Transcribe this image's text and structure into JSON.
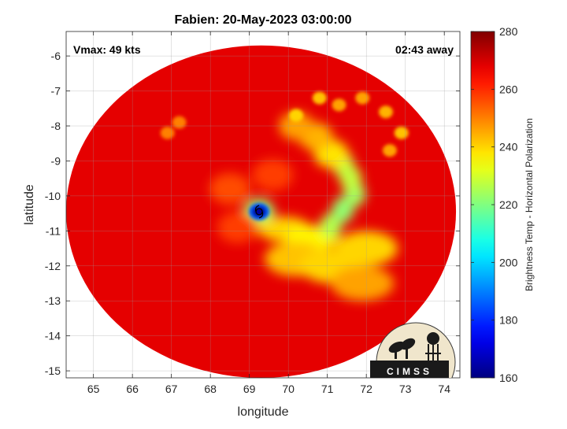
{
  "chart_data": {
    "type": "heatmap",
    "title": "Fabien: 20-May-2023 03:00:00",
    "xlabel": "longitude",
    "ylabel": "latitude",
    "xlim": [
      64.3,
      74.4
    ],
    "ylim": [
      -15.2,
      -5.3
    ],
    "x_ticks": [
      65,
      66,
      67,
      68,
      69,
      70,
      71,
      72,
      73,
      74
    ],
    "y_ticks": [
      -6,
      -7,
      -8,
      -9,
      -10,
      -11,
      -12,
      -13,
      -14,
      -15
    ],
    "grid": true,
    "annotations": {
      "vmax": "Vmax: 49 kts",
      "time_offset": "02:43 away"
    },
    "storm_center": {
      "lon": 69.25,
      "lat": -10.45
    },
    "colorbar": {
      "label": "Brightness Temp - Horizontal Polarization",
      "range": [
        160,
        280
      ],
      "ticks": [
        160,
        180,
        200,
        220,
        240,
        260,
        280
      ],
      "colormap": "jet"
    },
    "swath": {
      "center_lon": 69.3,
      "center_lat": -10.45,
      "radius_lon": 5.0,
      "radius_lat": 4.75
    },
    "background_value": 268,
    "features": [
      {
        "feature": "eye",
        "lon": 69.25,
        "lat": -10.45,
        "value": 163
      },
      {
        "feature": "eyewall-band",
        "lon": 69.9,
        "lat": -10.95,
        "value": 240
      },
      {
        "feature": "eyewall-band",
        "lon": 70.6,
        "lat": -11.2,
        "value": 236
      },
      {
        "feature": "inner-band",
        "lon": 71.1,
        "lat": -10.85,
        "value": 226
      },
      {
        "feature": "inner-band",
        "lon": 71.4,
        "lat": -10.4,
        "value": 222
      },
      {
        "feature": "inner-band",
        "lon": 71.7,
        "lat": -9.95,
        "value": 224
      },
      {
        "feature": "inner-band",
        "lon": 71.6,
        "lat": -9.5,
        "value": 228
      },
      {
        "feature": "inner-band",
        "lon": 71.4,
        "lat": -9.1,
        "value": 228
      },
      {
        "feature": "outer-band",
        "lon": 71.1,
        "lat": -8.8,
        "value": 238
      },
      {
        "feature": "outer-band",
        "lon": 70.7,
        "lat": -8.3,
        "value": 244
      },
      {
        "feature": "outer-band",
        "lon": 70.2,
        "lat": -8.0,
        "value": 246
      },
      {
        "feature": "southern-band",
        "lon": 70.2,
        "lat": -11.8,
        "value": 242
      },
      {
        "feature": "southern-band",
        "lon": 71.1,
        "lat": -12.0,
        "value": 240
      },
      {
        "feature": "southern-band",
        "lon": 72.0,
        "lat": -11.5,
        "value": 240
      },
      {
        "feature": "southern-band",
        "lon": 71.9,
        "lat": -12.5,
        "value": 246
      },
      {
        "feature": "convective-cell",
        "lon": 70.2,
        "lat": -7.7,
        "value": 240
      },
      {
        "feature": "convective-cell",
        "lon": 70.8,
        "lat": -7.2,
        "value": 242
      },
      {
        "feature": "convective-cell",
        "lon": 71.3,
        "lat": -7.4,
        "value": 246
      },
      {
        "feature": "convective-cell",
        "lon": 71.9,
        "lat": -7.2,
        "value": 246
      },
      {
        "feature": "convective-cell",
        "lon": 72.5,
        "lat": -7.6,
        "value": 244
      },
      {
        "feature": "convective-cell",
        "lon": 72.9,
        "lat": -8.2,
        "value": 242
      },
      {
        "feature": "convective-cell",
        "lon": 72.6,
        "lat": -8.7,
        "value": 246
      },
      {
        "feature": "convective-cell",
        "lon": 67.2,
        "lat": -7.9,
        "value": 250
      },
      {
        "feature": "convective-cell",
        "lon": 66.9,
        "lat": -8.2,
        "value": 250
      },
      {
        "feature": "rain-swirl",
        "lon": 68.7,
        "lat": -10.9,
        "value": 258
      },
      {
        "feature": "rain-swirl",
        "lon": 68.5,
        "lat": -9.8,
        "value": 256
      },
      {
        "feature": "rain-swirl",
        "lon": 69.6,
        "lat": -9.4,
        "value": 258
      }
    ]
  },
  "logo": {
    "text": "CIMSS"
  }
}
